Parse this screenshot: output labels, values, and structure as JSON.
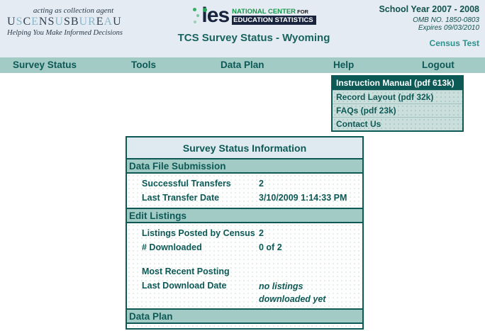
{
  "header": {
    "census_logo": {
      "tagline_top": "acting as collection agent",
      "wordmark": "USCENSUSBUREAU",
      "light_letters": [
        1,
        3,
        6,
        9,
        10,
        12
      ],
      "tagline_bottom": "Helping You Make Informed Decisions"
    },
    "ies_logo": {
      "acronym": "ies",
      "line1": "NATIONAL CENTER",
      "line1_suffix": " FOR",
      "line2": "EDUCATION STATISTICS"
    },
    "page_title": "TCS Survey Status - Wyoming",
    "school_year": "School Year 2007 - 2008",
    "omb_no": "OMB NO. 1850-0803",
    "expires": "Expires 09/03/2010",
    "census_test": "Census Test"
  },
  "nav": {
    "items": [
      {
        "label": "Survey Status"
      },
      {
        "label": "Tools"
      },
      {
        "label": "Data Plan"
      },
      {
        "label": "Help"
      },
      {
        "label": "Logout"
      }
    ]
  },
  "help_menu": {
    "items": [
      {
        "label": "Instruction Manual (pdf 613k)",
        "highlighted": true
      },
      {
        "label": "Record Layout (pdf 32k)",
        "highlighted": false
      },
      {
        "label": "FAQs (pdf 23k)",
        "highlighted": false
      },
      {
        "label": "Contact Us",
        "highlighted": false
      }
    ]
  },
  "table": {
    "title": "Survey Status Information",
    "sections": [
      {
        "header": "Data File Submission",
        "rows": [
          {
            "label": "Successful Transfers",
            "value": "2",
            "italic": false
          },
          {
            "label": "Last Transfer Date",
            "value": "3/10/2009 1:14:33 PM",
            "italic": false
          }
        ]
      },
      {
        "header": "Edit Listings",
        "rows": [
          {
            "label": "Listings Posted by Census",
            "value": "2",
            "italic": false
          },
          {
            "label": "# Downloaded",
            "value": "0 of 2",
            "italic": false
          },
          {
            "label": "",
            "value": "",
            "italic": false
          },
          {
            "label": "Most Recent Posting",
            "value": "",
            "italic": false
          },
          {
            "label": "Last Download Date",
            "value": "no listings downloaded yet",
            "italic": true
          }
        ]
      },
      {
        "header": "Data Plan",
        "rows": []
      }
    ]
  },
  "colors": {
    "header_bg": "#e4ebf2",
    "nav_bg": "#a3cbc6",
    "teal_text": "#0d5956",
    "menu_highlight_bg": "#0d5956",
    "menu_item_bg": "#cadedb",
    "table_title_bg": "#dfe9f0",
    "census_test_accent": "#2d918d",
    "ies_green": "#27a558",
    "ies_navy": "#18243e",
    "census_light_blue": "#8cb6ca"
  }
}
